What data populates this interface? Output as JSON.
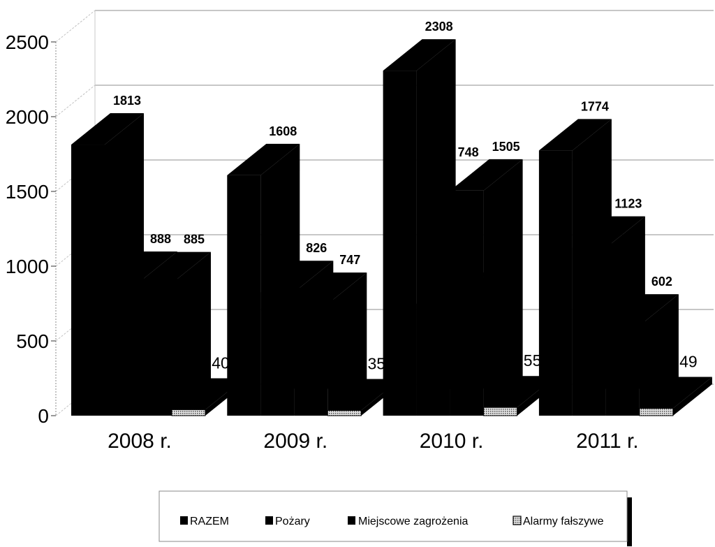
{
  "chart_data": {
    "type": "bar",
    "three_d": true,
    "categories": [
      "2008 r.",
      "2009 r.",
      "2010 r.",
      "2011 r."
    ],
    "series": [
      {
        "name": "RAZEM",
        "values": [
          1813,
          1608,
          2308,
          1774
        ],
        "color": "#000000"
      },
      {
        "name": "Pożary",
        "values": [
          888,
          826,
          748,
          1123
        ],
        "color": "#000000"
      },
      {
        "name": "Miejscowe zagrożenia",
        "values": [
          885,
          747,
          1505,
          602
        ],
        "color": "#000000"
      },
      {
        "name": "Alarmy fałszywe",
        "values": [
          40,
          35,
          55,
          49
        ],
        "color": "#000000",
        "pattern": "hatched"
      }
    ],
    "y_ticks": [
      0,
      500,
      1000,
      1500,
      2000,
      2500
    ],
    "ylim": [
      0,
      2500
    ],
    "grid": true,
    "data_labels": true,
    "legend": "bottom"
  }
}
